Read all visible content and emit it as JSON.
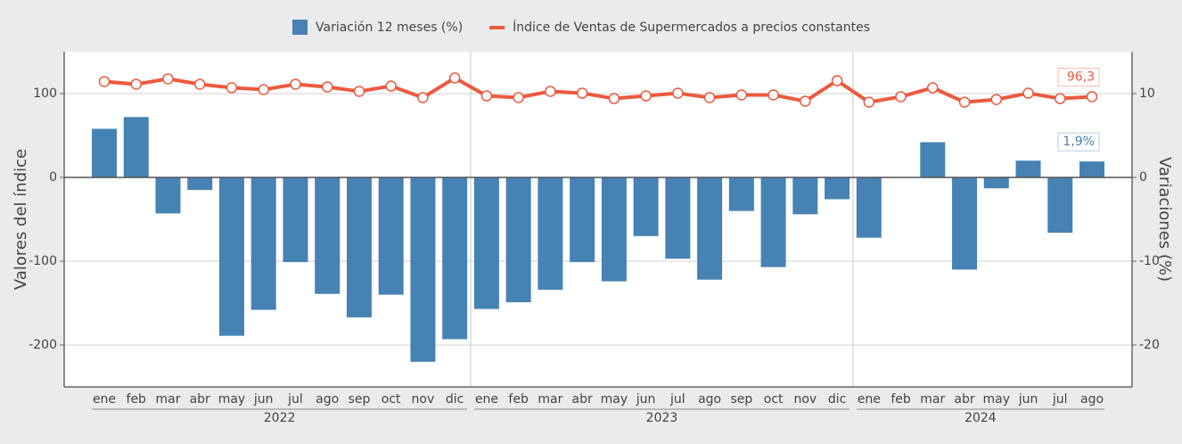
{
  "chart_data": {
    "type": "bar-line",
    "groups": [
      {
        "label": "2022",
        "categories": [
          "ene",
          "feb",
          "mar",
          "abr",
          "may",
          "jun",
          "jul",
          "ago",
          "sep",
          "oct",
          "nov",
          "dic"
        ]
      },
      {
        "label": "2023",
        "categories": [
          "ene",
          "feb",
          "mar",
          "abr",
          "may",
          "jun",
          "jul",
          "ago",
          "sep",
          "oct",
          "nov",
          "dic"
        ]
      },
      {
        "label": "2024",
        "categories": [
          "ene",
          "feb",
          "mar",
          "abr",
          "may",
          "jun",
          "jul",
          "ago"
        ]
      }
    ],
    "series": [
      {
        "name": "Variación 12 meses (%)",
        "type": "bar",
        "axis": "y2",
        "color": "#4682b4",
        "values": [
          5.8,
          7.2,
          -4.3,
          -1.5,
          -18.9,
          -15.8,
          -10.1,
          -13.9,
          -16.7,
          -14.0,
          -22.0,
          -19.3,
          -15.7,
          -14.9,
          -13.4,
          -10.1,
          -12.4,
          -7.0,
          -9.7,
          -12.2,
          -4.0,
          -10.7,
          -4.4,
          -2.6,
          -7.2,
          0,
          4.2,
          -11.0,
          -1.3,
          2.0,
          -6.6,
          1.9
        ],
        "value_labels": [
          null,
          null,
          null,
          null,
          null,
          null,
          null,
          null,
          null,
          null,
          null,
          null,
          null,
          null,
          null,
          null,
          null,
          null,
          null,
          null,
          null,
          null,
          null,
          null,
          null,
          null,
          null,
          null,
          null,
          null,
          null,
          "1,9%"
        ]
      },
      {
        "name": "Índice de Ventas de Supermercados a precios constantes",
        "type": "line",
        "color": "#ec5a3e",
        "values": [
          114.4,
          111.2,
          117.6,
          111.2,
          107,
          104.8,
          111.2,
          108,
          102.7,
          109,
          95.2,
          118.7,
          97.3,
          95.2,
          102.7,
          100.5,
          94.1,
          97.3,
          100.5,
          95.2,
          98.4,
          98.4,
          90.9,
          115.5,
          89.8,
          96.3,
          107,
          89.8,
          93,
          100.5,
          94.1,
          96.3
        ],
        "value_labels": [
          null,
          null,
          null,
          null,
          null,
          null,
          null,
          null,
          null,
          null,
          null,
          null,
          null,
          null,
          null,
          null,
          null,
          null,
          null,
          null,
          null,
          null,
          null,
          null,
          null,
          null,
          null,
          null,
          null,
          null,
          null,
          "96,3"
        ]
      }
    ],
    "ylabel": "Valores del índice",
    "y2label": "Variaciones (%)",
    "ylim": [
      -250,
      150
    ],
    "yticks": [
      -200,
      -100,
      0,
      100
    ],
    "y2lim": [
      -25,
      15
    ],
    "y2ticks": [
      -20,
      -10,
      0,
      10
    ],
    "grid": true,
    "legend": "top"
  }
}
